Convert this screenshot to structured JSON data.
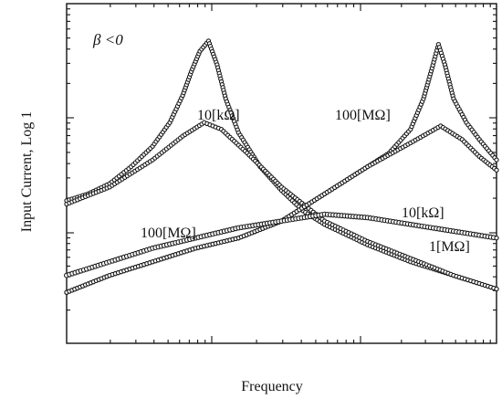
{
  "chart_data": {
    "type": "scatter",
    "title": "",
    "xlabel": "Frequency",
    "ylabel": "Input Current, Log 1",
    "x_scale": "log",
    "y_scale": "log",
    "x_ticks_label": "",
    "grid": false,
    "legend": "none",
    "beta_label": "β <0",
    "annotations": [
      {
        "text": "10[kΩ]",
        "near_series": "peak-left-10k"
      },
      {
        "text": "100[MΩ]",
        "near_series": "peak-left-100M"
      },
      {
        "text": "100[MΩ]",
        "near_series": "peak-right-100M"
      },
      {
        "text": "10[kΩ]",
        "near_series": "peak-right-10k"
      },
      {
        "text": "1[MΩ]",
        "near_series": "broad-1M"
      }
    ],
    "ylim": [
      0,
      1
    ],
    "xlim": [
      0,
      1
    ],
    "series": [
      {
        "id": "peak-left-10k",
        "marker": "open-circle",
        "points": [
          [
            0.0,
            0.42
          ],
          [
            0.05,
            0.44
          ],
          [
            0.1,
            0.47
          ],
          [
            0.15,
            0.52
          ],
          [
            0.2,
            0.58
          ],
          [
            0.24,
            0.65
          ],
          [
            0.27,
            0.73
          ],
          [
            0.29,
            0.8
          ],
          [
            0.31,
            0.86
          ],
          [
            0.33,
            0.89
          ],
          [
            0.35,
            0.82
          ],
          [
            0.37,
            0.72
          ],
          [
            0.4,
            0.62
          ],
          [
            0.45,
            0.52
          ],
          [
            0.5,
            0.45
          ],
          [
            0.55,
            0.39
          ],
          [
            0.6,
            0.35
          ],
          [
            0.7,
            0.29
          ],
          [
            0.8,
            0.24
          ],
          [
            0.9,
            0.2
          ],
          [
            1.0,
            0.16
          ]
        ]
      },
      {
        "id": "peak-left-100M",
        "marker": "open-circle",
        "points": [
          [
            0.0,
            0.41
          ],
          [
            0.1,
            0.46
          ],
          [
            0.2,
            0.54
          ],
          [
            0.27,
            0.61
          ],
          [
            0.32,
            0.65
          ],
          [
            0.36,
            0.63
          ],
          [
            0.42,
            0.56
          ],
          [
            0.5,
            0.46
          ],
          [
            0.6,
            0.36
          ],
          [
            0.7,
            0.3
          ],
          [
            0.8,
            0.25
          ],
          [
            0.9,
            0.2
          ],
          [
            1.0,
            0.16
          ]
        ]
      },
      {
        "id": "peak-right-100M",
        "marker": "open-circle",
        "points": [
          [
            0.0,
            0.15
          ],
          [
            0.1,
            0.2
          ],
          [
            0.2,
            0.24
          ],
          [
            0.3,
            0.28
          ],
          [
            0.4,
            0.31
          ],
          [
            0.5,
            0.36
          ],
          [
            0.6,
            0.44
          ],
          [
            0.7,
            0.52
          ],
          [
            0.75,
            0.56
          ],
          [
            0.8,
            0.63
          ],
          [
            0.83,
            0.72
          ],
          [
            0.85,
            0.81
          ],
          [
            0.865,
            0.88
          ],
          [
            0.88,
            0.82
          ],
          [
            0.9,
            0.72
          ],
          [
            0.93,
            0.65
          ],
          [
            0.96,
            0.6
          ],
          [
            1.0,
            0.54
          ]
        ]
      },
      {
        "id": "peak-right-10k",
        "marker": "open-circle",
        "points": [
          [
            0.0,
            0.15
          ],
          [
            0.1,
            0.2
          ],
          [
            0.2,
            0.24
          ],
          [
            0.3,
            0.28
          ],
          [
            0.4,
            0.31
          ],
          [
            0.5,
            0.36
          ],
          [
            0.6,
            0.44
          ],
          [
            0.7,
            0.52
          ],
          [
            0.8,
            0.59
          ],
          [
            0.87,
            0.64
          ],
          [
            0.92,
            0.6
          ],
          [
            0.96,
            0.55
          ],
          [
            1.0,
            0.51
          ]
        ]
      },
      {
        "id": "broad-1M",
        "marker": "filled",
        "points": [
          [
            0.0,
            0.2
          ],
          [
            0.1,
            0.24
          ],
          [
            0.2,
            0.28
          ],
          [
            0.3,
            0.31
          ],
          [
            0.4,
            0.34
          ],
          [
            0.5,
            0.36
          ],
          [
            0.6,
            0.38
          ],
          [
            0.7,
            0.37
          ],
          [
            0.8,
            0.35
          ],
          [
            0.9,
            0.33
          ],
          [
            1.0,
            0.31
          ]
        ]
      }
    ]
  }
}
